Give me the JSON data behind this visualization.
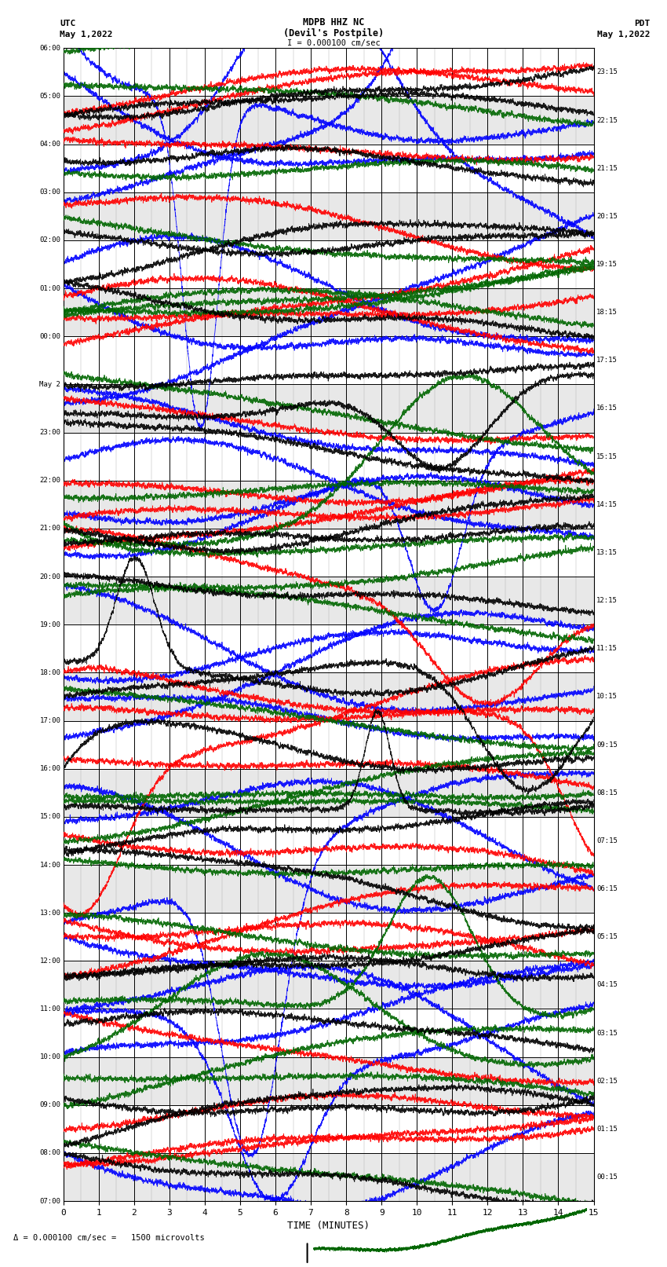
{
  "title_line1": "MDPB HHZ NC",
  "title_line2": "(Devil's Postpile)",
  "scale_label": "I = 0.000100 cm/sec",
  "footer_label": "Δ = 0.000100 cm/sec =   1500 microvolts",
  "utc_header": "UTC",
  "utc_date": "May 1,2022",
  "pdt_header": "PDT",
  "pdt_date": "May 1,2022",
  "utc_labels": [
    "07:00",
    "08:00",
    "09:00",
    "10:00",
    "11:00",
    "12:00",
    "13:00",
    "14:00",
    "15:00",
    "16:00",
    "17:00",
    "18:00",
    "19:00",
    "20:00",
    "21:00",
    "22:00",
    "23:00",
    "May 2",
    "00:00",
    "01:00",
    "02:00",
    "03:00",
    "04:00",
    "05:00",
    "06:00"
  ],
  "pdt_labels": [
    "00:15",
    "01:15",
    "02:15",
    "03:15",
    "04:15",
    "05:15",
    "06:15",
    "07:15",
    "08:15",
    "09:15",
    "10:15",
    "11:15",
    "12:15",
    "13:15",
    "14:15",
    "15:15",
    "16:15",
    "17:15",
    "18:15",
    "19:15",
    "20:15",
    "21:15",
    "22:15",
    "23:15"
  ],
  "time_axis_label": "TIME (MINUTES)",
  "x_ticks": [
    0,
    1,
    2,
    3,
    4,
    5,
    6,
    7,
    8,
    9,
    10,
    11,
    12,
    13,
    14,
    15
  ],
  "bg_color": "#ffffff",
  "alt_row_color": "#e8e8e8",
  "grid_minor_color": "#aaaaaa",
  "grid_major_color": "#000000",
  "trace_colors": [
    "#0000ff",
    "#ff0000",
    "#006600",
    "#000000"
  ],
  "num_rows": 24,
  "minutes_per_row": 15,
  "samples_per_minute": 300,
  "random_seed": 42,
  "blue_amp": 3.2,
  "blue_period": 55,
  "blue_phase": 0.0,
  "red_amp": 2.0,
  "red_period": 65,
  "red_phase": 1.8,
  "green_amp": 1.8,
  "green_period": 80,
  "green_phase": 3.5,
  "black_amp": 1.2,
  "black_period": 45,
  "black_phase": 0.9,
  "noise_scale": 0.12,
  "lw": 0.6,
  "large_event_blue_row": 10,
  "large_event_blue_col": 3.0,
  "large_event_red_row": 8,
  "large_event_red_col": 5.0
}
